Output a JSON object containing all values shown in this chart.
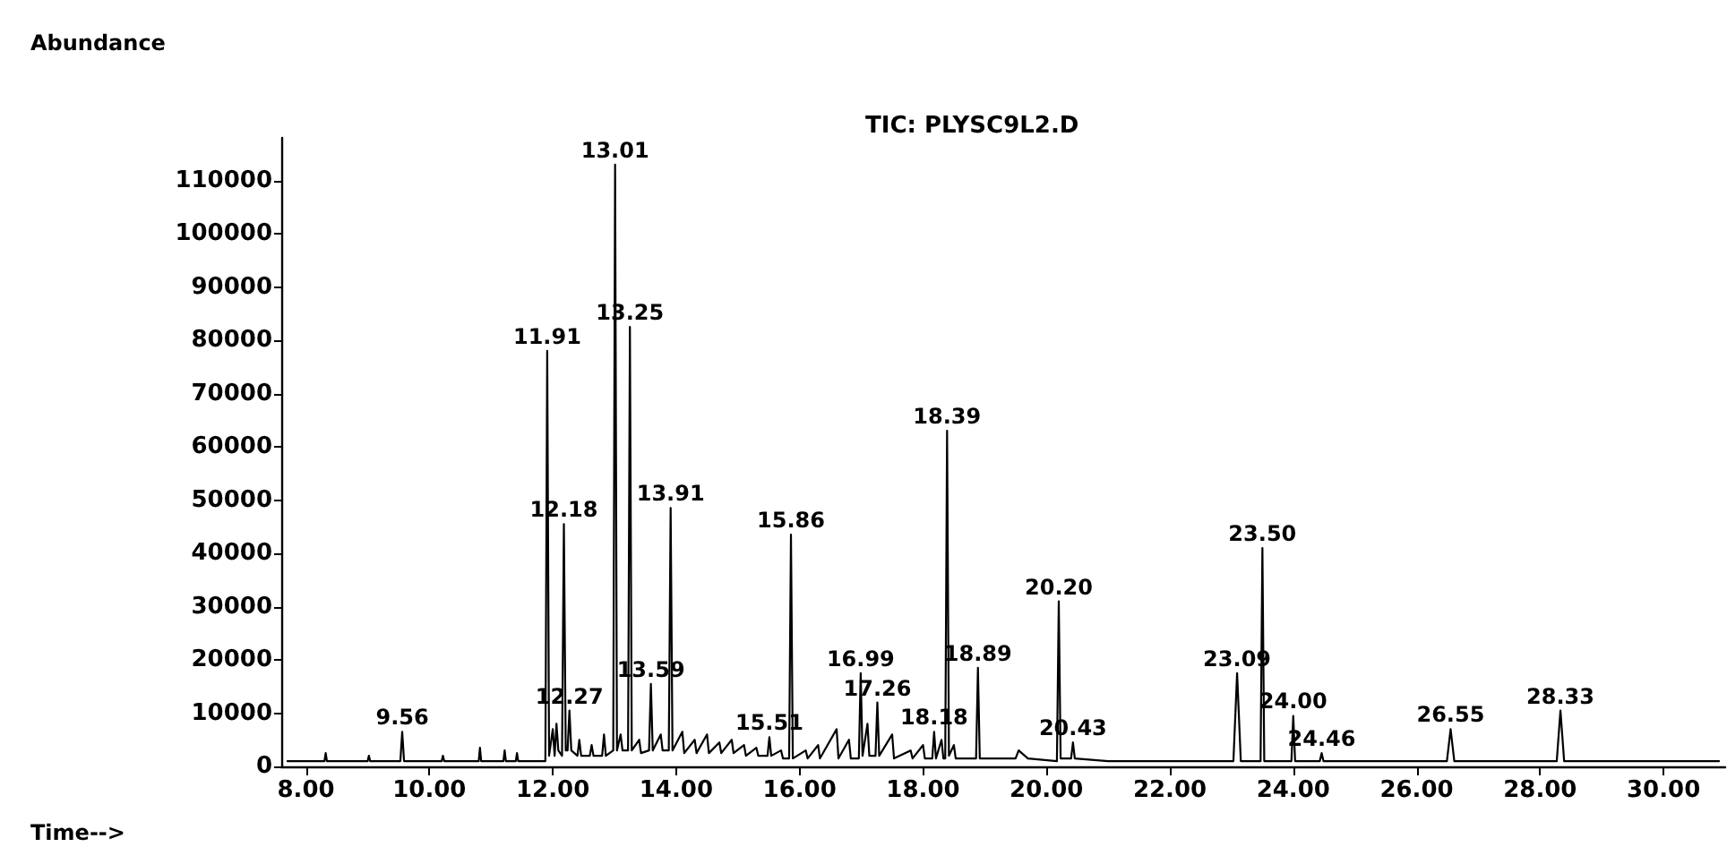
{
  "chart_data": {
    "type": "line",
    "title": "TIC: PLYSC9L2.D",
    "xlabel": "Time-->",
    "ylabel": "Abundance",
    "color": "#000000",
    "marker": "none",
    "x": [
      7.7,
      8.3,
      8.32,
      8.34,
      9.0,
      9.02,
      9.04,
      9.53,
      9.56,
      9.59,
      10.2,
      10.22,
      10.24,
      10.8,
      10.82,
      10.84,
      11.2,
      11.22,
      11.24,
      11.4,
      11.42,
      11.44,
      11.88,
      11.91,
      11.94,
      12.0,
      12.03,
      12.06,
      12.09,
      12.15,
      12.18,
      12.21,
      12.24,
      12.27,
      12.3,
      12.4,
      12.43,
      12.46,
      12.6,
      12.63,
      12.66,
      12.8,
      12.83,
      12.86,
      12.98,
      13.01,
      13.04,
      13.1,
      13.13,
      13.22,
      13.25,
      13.28,
      13.4,
      13.43,
      13.56,
      13.59,
      13.62,
      13.75,
      13.78,
      13.88,
      13.91,
      13.94,
      14.1,
      14.13,
      14.3,
      14.33,
      14.5,
      14.53,
      14.7,
      14.73,
      14.9,
      14.93,
      15.1,
      15.13,
      15.3,
      15.33,
      15.48,
      15.51,
      15.54,
      15.7,
      15.73,
      15.83,
      15.86,
      15.89,
      16.1,
      16.13,
      16.3,
      16.33,
      16.6,
      16.63,
      16.8,
      16.83,
      16.96,
      16.99,
      17.02,
      17.1,
      17.13,
      17.23,
      17.26,
      17.29,
      17.5,
      17.53,
      17.8,
      17.83,
      18.0,
      18.03,
      18.15,
      18.18,
      18.21,
      18.3,
      18.33,
      18.36,
      18.39,
      18.42,
      18.5,
      18.53,
      18.86,
      18.89,
      18.92,
      19.5,
      19.55,
      19.6,
      19.7,
      20.17,
      20.2,
      20.23,
      20.4,
      20.43,
      20.46,
      21.0,
      23.03,
      23.09,
      23.15,
      23.47,
      23.5,
      23.53,
      23.97,
      24.0,
      24.03,
      24.43,
      24.46,
      24.49,
      26.49,
      26.55,
      26.61,
      28.27,
      28.33,
      28.39,
      30.9
    ],
    "values": [
      1000,
      1000,
      2500,
      1000,
      1000,
      2000,
      1000,
      1000,
      6500,
      1000,
      1000,
      2000,
      1000,
      1000,
      3500,
      1000,
      1000,
      3000,
      1000,
      1000,
      2500,
      1000,
      1000,
      78000,
      2000,
      7000,
      2000,
      8000,
      3000,
      2000,
      45500,
      3000,
      3000,
      10500,
      3000,
      2000,
      5000,
      2000,
      2000,
      4000,
      2000,
      2000,
      6000,
      2000,
      3000,
      113000,
      3000,
      6000,
      3000,
      3000,
      82500,
      3000,
      5000,
      2500,
      3000,
      15500,
      3000,
      6000,
      3000,
      3000,
      48500,
      3000,
      6500,
      2500,
      5000,
      2500,
      6000,
      2500,
      4500,
      2500,
      5000,
      2500,
      4000,
      2000,
      3500,
      2000,
      2000,
      5500,
      2000,
      3000,
      1500,
      1500,
      43500,
      1500,
      3000,
      1500,
      4000,
      1500,
      7000,
      1500,
      5000,
      1500,
      1500,
      17500,
      2000,
      8000,
      2000,
      2000,
      12000,
      2000,
      6000,
      1500,
      3000,
      1500,
      4000,
      1500,
      1500,
      6500,
      1500,
      5000,
      1500,
      1500,
      63000,
      2000,
      4000,
      1500,
      1500,
      18500,
      1500,
      1500,
      3000,
      2500,
      1500,
      1000,
      31000,
      1500,
      1500,
      4500,
      1500,
      1000,
      1000,
      17500,
      1000,
      1000,
      41000,
      1000,
      1000,
      9500,
      1000,
      1000,
      2500,
      1000,
      1000,
      7000,
      1000,
      1000,
      10500,
      1000,
      1000
    ],
    "xlim": [
      7.6,
      31.0
    ],
    "xticks": [
      {
        "value": 8,
        "label": "8.00"
      },
      {
        "value": 10,
        "label": "10.00"
      },
      {
        "value": 12,
        "label": "12.00"
      },
      {
        "value": 14,
        "label": "14.00"
      },
      {
        "value": 16,
        "label": "16.00"
      },
      {
        "value": 18,
        "label": "18.00"
      },
      {
        "value": 20,
        "label": "20.00"
      },
      {
        "value": 22,
        "label": "22.00"
      },
      {
        "value": 24,
        "label": "24.00"
      },
      {
        "value": 26,
        "label": "26.00"
      },
      {
        "value": 28,
        "label": "28.00"
      },
      {
        "value": 30,
        "label": "30.00"
      }
    ],
    "ylim": [
      0,
      118000
    ],
    "yticks": [
      0,
      10000,
      20000,
      30000,
      40000,
      50000,
      60000,
      70000,
      80000,
      90000,
      100000,
      110000
    ],
    "annotations": [
      {
        "text": "9.56",
        "x": 9.56,
        "y": 6500
      },
      {
        "text": "11.91",
        "x": 11.91,
        "y": 78000
      },
      {
        "text": "12.18",
        "x": 12.18,
        "y": 45500
      },
      {
        "text": "12.27",
        "x": 12.27,
        "y": 10500
      },
      {
        "text": "13.01",
        "x": 13.01,
        "y": 113000
      },
      {
        "text": "13.25",
        "x": 13.25,
        "y": 82500
      },
      {
        "text": "13.59",
        "x": 13.59,
        "y": 15500
      },
      {
        "text": "13.91",
        "x": 13.91,
        "y": 48500
      },
      {
        "text": "15.51",
        "x": 15.51,
        "y": 5500
      },
      {
        "text": "15.86",
        "x": 15.86,
        "y": 43500
      },
      {
        "text": "16.99",
        "x": 16.99,
        "y": 17500
      },
      {
        "text": "17.26",
        "x": 17.26,
        "y": 12000
      },
      {
        "text": "18.18",
        "x": 18.18,
        "y": 6500
      },
      {
        "text": "18.39",
        "x": 18.39,
        "y": 63000
      },
      {
        "text": "18.89",
        "x": 18.89,
        "y": 18500
      },
      {
        "text": "20.20",
        "x": 20.2,
        "y": 31000
      },
      {
        "text": "20.43",
        "x": 20.43,
        "y": 4500
      },
      {
        "text": "23.09",
        "x": 23.09,
        "y": 17500
      },
      {
        "text": "23.50",
        "x": 23.5,
        "y": 41000
      },
      {
        "text": "24.00",
        "x": 24.0,
        "y": 9500
      },
      {
        "text": "24.46",
        "x": 24.46,
        "y": 2500
      },
      {
        "text": "26.55",
        "x": 26.55,
        "y": 7000
      },
      {
        "text": "28.33",
        "x": 28.33,
        "y": 10500
      }
    ]
  }
}
